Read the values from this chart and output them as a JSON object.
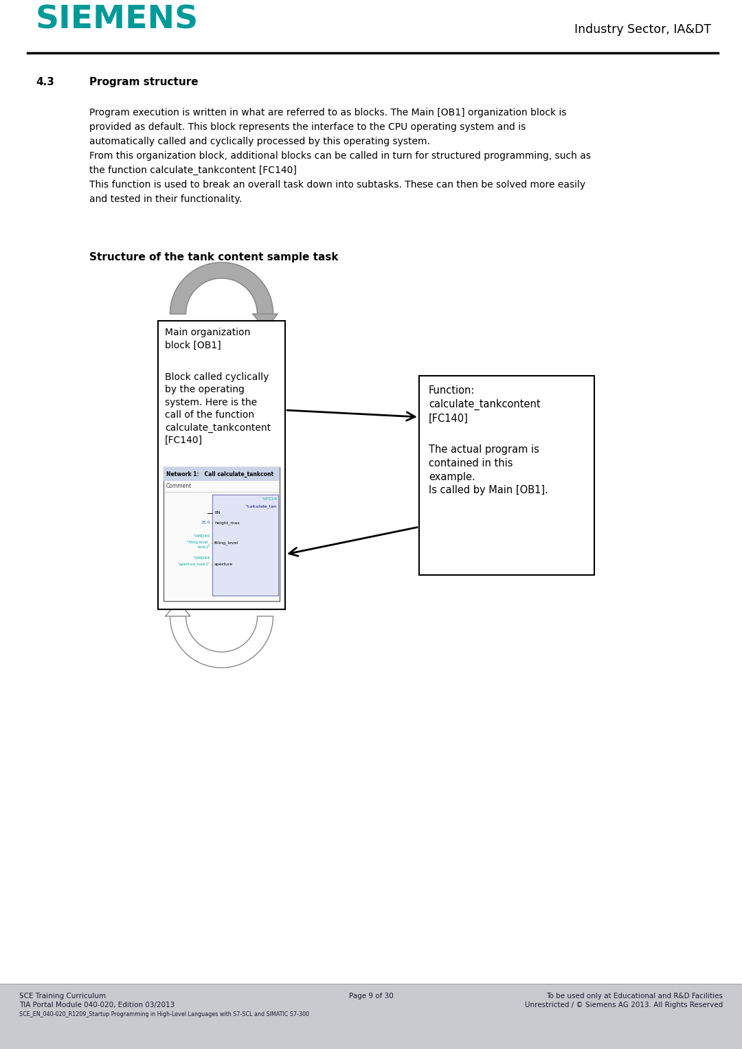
{
  "siemens_color": "#009999",
  "page_bg": "#FFFFFF",
  "footer_bg_color": "#C8CAD0",
  "industry_text": "Industry Sector, IA&DT",
  "section_num": "4.3",
  "section_title": "Program structure",
  "body_lines": [
    "Program execution is written in what are referred to as blocks. The Main [OB1] organization block is",
    "provided as default. This block represents the interface to the CPU operating system and is",
    "automatically called and cyclically processed by this operating system.",
    "From this organization block, additional blocks can be called in turn for structured programming, such as",
    "the function calculate_tankcontent [FC140]",
    "This function is used to break an overall task down into subtasks. These can then be solved more easily",
    "and tested in their functionality."
  ],
  "diagram_title": "Structure of the tank content sample task",
  "ob1_text1": "Main organization\nblock [OB1]",
  "ob1_text2": "Block called cyclically\nby the operating\nsystem. Here is the\ncall of the function\ncalculate_tankcontent\n[FC140]",
  "fc140_text1": "Function:\ncalculate_tankcontent\n[FC140]",
  "fc140_text2": "The actual program is\ncontained in this\nexample.\nIs called by Main [OB1].",
  "footer_left1": "SCE Training Curriculum",
  "footer_left2": "TIA Portal Module 040-020, Edition 03/2013",
  "footer_left3": "SCE_EN_040-020_R1209_Startup Programming in High-Level Languages with S7-SCL and SIMATIC S7-300",
  "footer_center": "Page 9 of 30",
  "footer_right1": "To be used only at Educational and R&D Facilities",
  "footer_right2": "Unrestricted / © Siemens AG 2013. All Rights Reserved"
}
